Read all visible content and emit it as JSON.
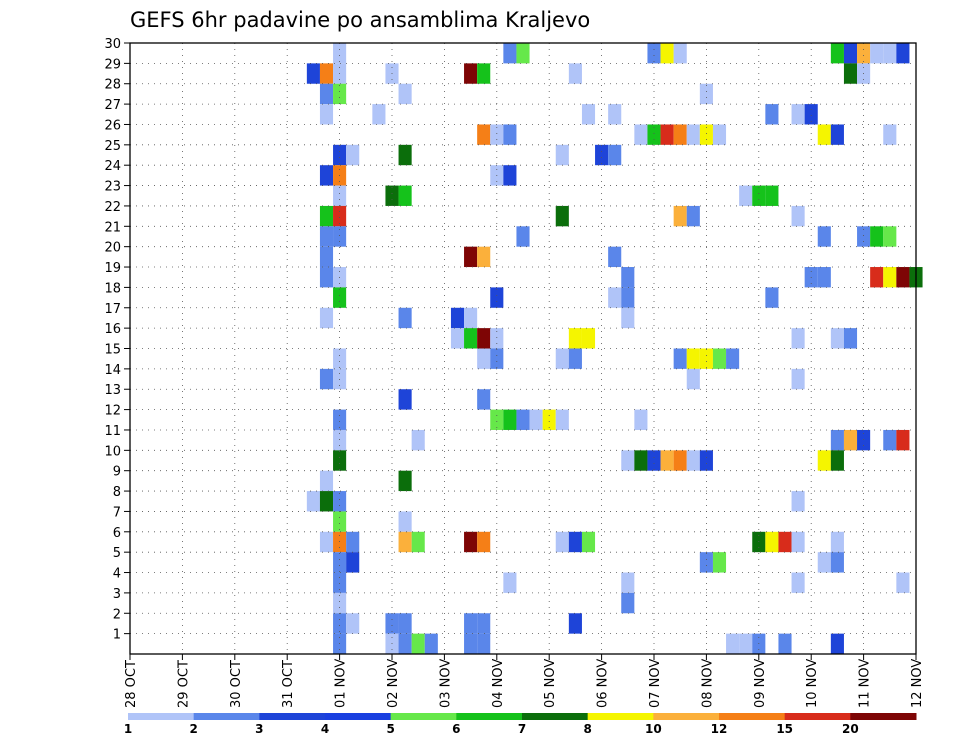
{
  "chart_data": {
    "type": "heatmap",
    "title": "GEFS 6hr padavine po ansamblima Kraljevo",
    "xlabel": "",
    "ylabel": "",
    "x_tick_labels": [
      "28 OCT",
      "29 OCT",
      "30 OCT",
      "31 OCT",
      "01 NOV",
      "02 NOV",
      "03 NOV",
      "04 NOV",
      "05 NOV",
      "06 NOV",
      "07 NOV",
      "08 NOV",
      "09 NOV",
      "10 NOV",
      "11 NOV",
      "12 NOV"
    ],
    "y_tick_labels": [
      "1",
      "2",
      "3",
      "4",
      "5",
      "6",
      "7",
      "8",
      "9",
      "10",
      "11",
      "12",
      "13",
      "14",
      "15",
      "16",
      "17",
      "18",
      "19",
      "20",
      "21",
      "22",
      "23",
      "24",
      "25",
      "26",
      "27",
      "28",
      "29",
      "30"
    ],
    "grid": true,
    "x_range_steps": [
      0,
      60
    ],
    "y_range": [
      0,
      30
    ],
    "colorbar": {
      "labels": [
        "1",
        "2",
        "3",
        "4",
        "5",
        "6",
        "7",
        "8",
        "10",
        "12",
        "15",
        "20"
      ],
      "colors": [
        "#b0c4f8",
        "#5a86ea",
        "#1e44d8",
        "#1a3fe0",
        "#66e84a",
        "#15c21b",
        "#0b6e0b",
        "#f5f500",
        "#fbb03b",
        "#f57f17",
        "#d82c1b",
        "#7e0505"
      ]
    },
    "cells": [
      {
        "t": 16,
        "m": 30,
        "c": 1
      },
      {
        "t": 29,
        "m": 30,
        "c": 2
      },
      {
        "t": 30,
        "m": 30,
        "c": 5
      },
      {
        "t": 40,
        "m": 30,
        "c": 2
      },
      {
        "t": 41,
        "m": 30,
        "c": 8
      },
      {
        "t": 42,
        "m": 30,
        "c": 1
      },
      {
        "t": 54,
        "m": 30,
        "c": 6
      },
      {
        "t": 55,
        "m": 30,
        "c": 3
      },
      {
        "t": 56,
        "m": 30,
        "c": 9
      },
      {
        "t": 57,
        "m": 30,
        "c": 1
      },
      {
        "t": 58,
        "m": 30,
        "c": 1
      },
      {
        "t": 59,
        "m": 30,
        "c": 3
      },
      {
        "t": 14,
        "m": 29,
        "c": 3
      },
      {
        "t": 15,
        "m": 29,
        "c": 10
      },
      {
        "t": 16,
        "m": 29,
        "c": 1
      },
      {
        "t": 20,
        "m": 29,
        "c": 1
      },
      {
        "t": 26,
        "m": 29,
        "c": 12
      },
      {
        "t": 27,
        "m": 29,
        "c": 6
      },
      {
        "t": 34,
        "m": 29,
        "c": 1
      },
      {
        "t": 55,
        "m": 29,
        "c": 7
      },
      {
        "t": 56,
        "m": 29,
        "c": 1
      },
      {
        "t": 15,
        "m": 28,
        "c": 2
      },
      {
        "t": 16,
        "m": 28,
        "c": 5
      },
      {
        "t": 21,
        "m": 28,
        "c": 1
      },
      {
        "t": 44,
        "m": 28,
        "c": 1
      },
      {
        "t": 15,
        "m": 27,
        "c": 1
      },
      {
        "t": 19,
        "m": 27,
        "c": 1
      },
      {
        "t": 35,
        "m": 27,
        "c": 1
      },
      {
        "t": 37,
        "m": 27,
        "c": 1
      },
      {
        "t": 49,
        "m": 27,
        "c": 2
      },
      {
        "t": 51,
        "m": 27,
        "c": 1
      },
      {
        "t": 52,
        "m": 27,
        "c": 3
      },
      {
        "t": 27,
        "m": 26,
        "c": 10
      },
      {
        "t": 28,
        "m": 26,
        "c": 1
      },
      {
        "t": 29,
        "m": 26,
        "c": 2
      },
      {
        "t": 39,
        "m": 26,
        "c": 1
      },
      {
        "t": 40,
        "m": 26,
        "c": 6
      },
      {
        "t": 41,
        "m": 26,
        "c": 11
      },
      {
        "t": 42,
        "m": 26,
        "c": 10
      },
      {
        "t": 43,
        "m": 26,
        "c": 1
      },
      {
        "t": 44,
        "m": 26,
        "c": 8
      },
      {
        "t": 45,
        "m": 26,
        "c": 1
      },
      {
        "t": 53,
        "m": 26,
        "c": 8
      },
      {
        "t": 54,
        "m": 26,
        "c": 3
      },
      {
        "t": 58,
        "m": 26,
        "c": 1
      },
      {
        "t": 16,
        "m": 25,
        "c": 3
      },
      {
        "t": 17,
        "m": 25,
        "c": 1
      },
      {
        "t": 21,
        "m": 25,
        "c": 7
      },
      {
        "t": 33,
        "m": 25,
        "c": 1
      },
      {
        "t": 36,
        "m": 25,
        "c": 3
      },
      {
        "t": 37,
        "m": 25,
        "c": 2
      },
      {
        "t": 15,
        "m": 24,
        "c": 3
      },
      {
        "t": 16,
        "m": 24,
        "c": 10
      },
      {
        "t": 28,
        "m": 24,
        "c": 1
      },
      {
        "t": 29,
        "m": 24,
        "c": 3
      },
      {
        "t": 16,
        "m": 23,
        "c": 1
      },
      {
        "t": 20,
        "m": 23,
        "c": 7
      },
      {
        "t": 21,
        "m": 23,
        "c": 6
      },
      {
        "t": 47,
        "m": 23,
        "c": 1
      },
      {
        "t": 48,
        "m": 23,
        "c": 6
      },
      {
        "t": 49,
        "m": 23,
        "c": 6
      },
      {
        "t": 15,
        "m": 22,
        "c": 6
      },
      {
        "t": 16,
        "m": 22,
        "c": 11
      },
      {
        "t": 33,
        "m": 22,
        "c": 7
      },
      {
        "t": 42,
        "m": 22,
        "c": 9
      },
      {
        "t": 43,
        "m": 22,
        "c": 2
      },
      {
        "t": 51,
        "m": 22,
        "c": 1
      },
      {
        "t": 15,
        "m": 21,
        "c": 2
      },
      {
        "t": 16,
        "m": 21,
        "c": 2
      },
      {
        "t": 30,
        "m": 21,
        "c": 2
      },
      {
        "t": 53,
        "m": 21,
        "c": 2
      },
      {
        "t": 56,
        "m": 21,
        "c": 2
      },
      {
        "t": 57,
        "m": 21,
        "c": 6
      },
      {
        "t": 58,
        "m": 21,
        "c": 5
      },
      {
        "t": 15,
        "m": 20,
        "c": 2
      },
      {
        "t": 26,
        "m": 20,
        "c": 12
      },
      {
        "t": 27,
        "m": 20,
        "c": 9
      },
      {
        "t": 37,
        "m": 20,
        "c": 2
      },
      {
        "t": 15,
        "m": 19,
        "c": 2
      },
      {
        "t": 16,
        "m": 19,
        "c": 1
      },
      {
        "t": 38,
        "m": 19,
        "c": 2
      },
      {
        "t": 52,
        "m": 19,
        "c": 2
      },
      {
        "t": 53,
        "m": 19,
        "c": 2
      },
      {
        "t": 57,
        "m": 19,
        "c": 11
      },
      {
        "t": 58,
        "m": 19,
        "c": 8
      },
      {
        "t": 59,
        "m": 19,
        "c": 12
      },
      {
        "t": 60,
        "m": 19,
        "c": 7
      },
      {
        "t": 16,
        "m": 18,
        "c": 6
      },
      {
        "t": 28,
        "m": 18,
        "c": 3
      },
      {
        "t": 37,
        "m": 18,
        "c": 1
      },
      {
        "t": 38,
        "m": 18,
        "c": 2
      },
      {
        "t": 49,
        "m": 18,
        "c": 2
      },
      {
        "t": 15,
        "m": 17,
        "c": 1
      },
      {
        "t": 21,
        "m": 17,
        "c": 2
      },
      {
        "t": 25,
        "m": 17,
        "c": 3
      },
      {
        "t": 26,
        "m": 17,
        "c": 1
      },
      {
        "t": 38,
        "m": 17,
        "c": 1
      },
      {
        "t": 25,
        "m": 16,
        "c": 1
      },
      {
        "t": 26,
        "m": 16,
        "c": 6
      },
      {
        "t": 27,
        "m": 16,
        "c": 12
      },
      {
        "t": 28,
        "m": 16,
        "c": 1
      },
      {
        "t": 34,
        "m": 16,
        "c": 8
      },
      {
        "t": 35,
        "m": 16,
        "c": 8
      },
      {
        "t": 51,
        "m": 16,
        "c": 1
      },
      {
        "t": 54,
        "m": 16,
        "c": 1
      },
      {
        "t": 55,
        "m": 16,
        "c": 2
      },
      {
        "t": 16,
        "m": 15,
        "c": 1
      },
      {
        "t": 27,
        "m": 15,
        "c": 1
      },
      {
        "t": 28,
        "m": 15,
        "c": 2
      },
      {
        "t": 33,
        "m": 15,
        "c": 1
      },
      {
        "t": 34,
        "m": 15,
        "c": 2
      },
      {
        "t": 42,
        "m": 15,
        "c": 2
      },
      {
        "t": 43,
        "m": 15,
        "c": 8
      },
      {
        "t": 44,
        "m": 15,
        "c": 8
      },
      {
        "t": 45,
        "m": 15,
        "c": 5
      },
      {
        "t": 46,
        "m": 15,
        "c": 2
      },
      {
        "t": 15,
        "m": 14,
        "c": 2
      },
      {
        "t": 16,
        "m": 14,
        "c": 1
      },
      {
        "t": 43,
        "m": 14,
        "c": 1
      },
      {
        "t": 51,
        "m": 14,
        "c": 1
      },
      {
        "t": 21,
        "m": 13,
        "c": 3
      },
      {
        "t": 27,
        "m": 13,
        "c": 2
      },
      {
        "t": 16,
        "m": 12,
        "c": 2
      },
      {
        "t": 28,
        "m": 12,
        "c": 5
      },
      {
        "t": 29,
        "m": 12,
        "c": 6
      },
      {
        "t": 30,
        "m": 12,
        "c": 2
      },
      {
        "t": 31,
        "m": 12,
        "c": 1
      },
      {
        "t": 32,
        "m": 12,
        "c": 8
      },
      {
        "t": 33,
        "m": 12,
        "c": 1
      },
      {
        "t": 39,
        "m": 12,
        "c": 1
      },
      {
        "t": 16,
        "m": 11,
        "c": 1
      },
      {
        "t": 22,
        "m": 11,
        "c": 1
      },
      {
        "t": 54,
        "m": 11,
        "c": 2
      },
      {
        "t": 55,
        "m": 11,
        "c": 9
      },
      {
        "t": 56,
        "m": 11,
        "c": 3
      },
      {
        "t": 58,
        "m": 11,
        "c": 2
      },
      {
        "t": 59,
        "m": 11,
        "c": 11
      },
      {
        "t": 16,
        "m": 10,
        "c": 7
      },
      {
        "t": 38,
        "m": 10,
        "c": 1
      },
      {
        "t": 39,
        "m": 10,
        "c": 7
      },
      {
        "t": 40,
        "m": 10,
        "c": 3
      },
      {
        "t": 41,
        "m": 10,
        "c": 9
      },
      {
        "t": 42,
        "m": 10,
        "c": 10
      },
      {
        "t": 43,
        "m": 10,
        "c": 1
      },
      {
        "t": 44,
        "m": 10,
        "c": 3
      },
      {
        "t": 53,
        "m": 10,
        "c": 8
      },
      {
        "t": 54,
        "m": 10,
        "c": 7
      },
      {
        "t": 15,
        "m": 9,
        "c": 1
      },
      {
        "t": 21,
        "m": 9,
        "c": 7
      },
      {
        "t": 14,
        "m": 8,
        "c": 1
      },
      {
        "t": 15,
        "m": 8,
        "c": 7
      },
      {
        "t": 16,
        "m": 8,
        "c": 2
      },
      {
        "t": 51,
        "m": 8,
        "c": 1
      },
      {
        "t": 16,
        "m": 7,
        "c": 5
      },
      {
        "t": 21,
        "m": 7,
        "c": 1
      },
      {
        "t": 15,
        "m": 6,
        "c": 1
      },
      {
        "t": 16,
        "m": 6,
        "c": 10
      },
      {
        "t": 17,
        "m": 6,
        "c": 2
      },
      {
        "t": 21,
        "m": 6,
        "c": 9
      },
      {
        "t": 22,
        "m": 6,
        "c": 5
      },
      {
        "t": 26,
        "m": 6,
        "c": 12
      },
      {
        "t": 27,
        "m": 6,
        "c": 10
      },
      {
        "t": 33,
        "m": 6,
        "c": 1
      },
      {
        "t": 34,
        "m": 6,
        "c": 3
      },
      {
        "t": 35,
        "m": 6,
        "c": 5
      },
      {
        "t": 48,
        "m": 6,
        "c": 7
      },
      {
        "t": 49,
        "m": 6,
        "c": 8
      },
      {
        "t": 50,
        "m": 6,
        "c": 11
      },
      {
        "t": 51,
        "m": 6,
        "c": 1
      },
      {
        "t": 54,
        "m": 6,
        "c": 1
      },
      {
        "t": 16,
        "m": 5,
        "c": 2
      },
      {
        "t": 17,
        "m": 5,
        "c": 3
      },
      {
        "t": 44,
        "m": 5,
        "c": 2
      },
      {
        "t": 45,
        "m": 5,
        "c": 5
      },
      {
        "t": 53,
        "m": 5,
        "c": 1
      },
      {
        "t": 54,
        "m": 5,
        "c": 2
      },
      {
        "t": 16,
        "m": 4,
        "c": 2
      },
      {
        "t": 29,
        "m": 4,
        "c": 1
      },
      {
        "t": 38,
        "m": 4,
        "c": 1
      },
      {
        "t": 51,
        "m": 4,
        "c": 1
      },
      {
        "t": 59,
        "m": 4,
        "c": 1
      },
      {
        "t": 16,
        "m": 3,
        "c": 1
      },
      {
        "t": 38,
        "m": 3,
        "c": 2
      },
      {
        "t": 16,
        "m": 2,
        "c": 2
      },
      {
        "t": 17,
        "m": 2,
        "c": 1
      },
      {
        "t": 20,
        "m": 2,
        "c": 2
      },
      {
        "t": 21,
        "m": 2,
        "c": 2
      },
      {
        "t": 26,
        "m": 2,
        "c": 2
      },
      {
        "t": 27,
        "m": 2,
        "c": 2
      },
      {
        "t": 34,
        "m": 2,
        "c": 3
      },
      {
        "t": 16,
        "m": 1,
        "c": 2
      },
      {
        "t": 20,
        "m": 1,
        "c": 1
      },
      {
        "t": 21,
        "m": 1,
        "c": 2
      },
      {
        "t": 22,
        "m": 1,
        "c": 5
      },
      {
        "t": 23,
        "m": 1,
        "c": 2
      },
      {
        "t": 26,
        "m": 1,
        "c": 2
      },
      {
        "t": 27,
        "m": 1,
        "c": 2
      },
      {
        "t": 46,
        "m": 1,
        "c": 1
      },
      {
        "t": 47,
        "m": 1,
        "c": 1
      },
      {
        "t": 48,
        "m": 1,
        "c": 2
      },
      {
        "t": 50,
        "m": 1,
        "c": 2
      },
      {
        "t": 54,
        "m": 1,
        "c": 3
      }
    ]
  }
}
